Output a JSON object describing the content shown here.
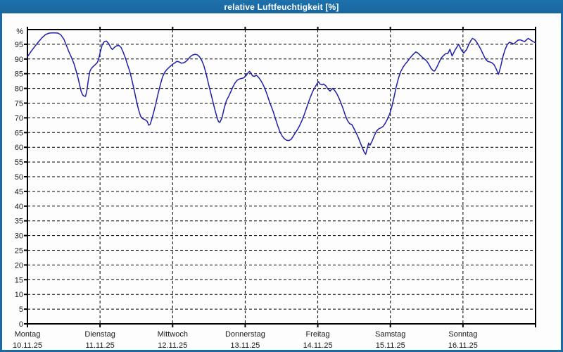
{
  "window": {
    "title": "relative Luftfeuchtigkeit [%]"
  },
  "colors": {
    "titlebar": "#1A6AA5",
    "title_text": "#FFFFFF",
    "background": "#FCFDFC",
    "curve": "#2020A8",
    "grid": "#000000",
    "axis": "#000000",
    "text": "#1A1A1A"
  },
  "chart_data": {
    "type": "line",
    "title": "relative Luftfeuchtigkeit [%]",
    "ylabel": "%",
    "xlabel": "",
    "ylim": [
      0,
      100
    ],
    "y_tick_step": 5,
    "y_tick_labels": [
      0,
      5,
      10,
      15,
      20,
      25,
      30,
      35,
      40,
      45,
      50,
      55,
      60,
      65,
      70,
      75,
      80,
      85,
      90,
      95
    ],
    "y_unit_label": "%",
    "grid": "dashed",
    "legend_position": "none",
    "x_days": [
      {
        "name": "Montag",
        "date": "10.11.25"
      },
      {
        "name": "Dienstag",
        "date": "11.11.25"
      },
      {
        "name": "Mittwoch",
        "date": "12.11.25"
      },
      {
        "name": "Donnerstag",
        "date": "13.11.25"
      },
      {
        "name": "Freitag",
        "date": "14.11.25"
      },
      {
        "name": "Samstag",
        "date": "15.11.25"
      },
      {
        "name": "Sonntag",
        "date": "16.11.25"
      }
    ],
    "series": [
      {
        "name": "relative Luftfeuchtigkeit",
        "unit": "%",
        "x_unit": "days_since_monday",
        "points": [
          [
            0.0,
            90.8
          ],
          [
            0.05,
            92.6
          ],
          [
            0.1,
            94.2
          ],
          [
            0.15,
            95.8
          ],
          [
            0.2,
            97.2
          ],
          [
            0.25,
            98.3
          ],
          [
            0.3,
            98.8
          ],
          [
            0.36,
            98.9
          ],
          [
            0.42,
            98.8
          ],
          [
            0.46,
            98.2
          ],
          [
            0.5,
            96.8
          ],
          [
            0.53,
            95.0
          ],
          [
            0.57,
            92.5
          ],
          [
            0.61,
            90.3
          ],
          [
            0.64,
            88.5
          ],
          [
            0.67,
            86.0
          ],
          [
            0.7,
            83.3
          ],
          [
            0.72,
            81.0
          ],
          [
            0.74,
            79.0
          ],
          [
            0.76,
            77.8
          ],
          [
            0.78,
            77.4
          ],
          [
            0.8,
            77.3
          ],
          [
            0.82,
            79.5
          ],
          [
            0.84,
            83.0
          ],
          [
            0.86,
            85.8
          ],
          [
            0.88,
            86.8
          ],
          [
            0.9,
            87.3
          ],
          [
            0.93,
            88.0
          ],
          [
            0.96,
            88.7
          ],
          [
            0.98,
            89.8
          ],
          [
            1.0,
            92.0
          ],
          [
            1.03,
            94.8
          ],
          [
            1.06,
            95.9
          ],
          [
            1.09,
            96.1
          ],
          [
            1.12,
            95.2
          ],
          [
            1.15,
            93.8
          ],
          [
            1.17,
            93.2
          ],
          [
            1.2,
            94.0
          ],
          [
            1.23,
            94.5
          ],
          [
            1.26,
            94.6
          ],
          [
            1.29,
            93.9
          ],
          [
            1.32,
            92.3
          ],
          [
            1.35,
            90.3
          ],
          [
            1.38,
            88.0
          ],
          [
            1.41,
            85.8
          ],
          [
            1.44,
            82.8
          ],
          [
            1.47,
            79.5
          ],
          [
            1.5,
            76.0
          ],
          [
            1.53,
            72.8
          ],
          [
            1.56,
            70.5
          ],
          [
            1.59,
            69.7
          ],
          [
            1.62,
            69.4
          ],
          [
            1.65,
            68.8
          ],
          [
            1.67,
            67.5
          ],
          [
            1.69,
            67.8
          ],
          [
            1.71,
            69.3
          ],
          [
            1.74,
            72.0
          ],
          [
            1.77,
            75.0
          ],
          [
            1.8,
            78.3
          ],
          [
            1.83,
            81.2
          ],
          [
            1.86,
            83.8
          ],
          [
            1.89,
            85.4
          ],
          [
            1.92,
            86.4
          ],
          [
            1.95,
            87.1
          ],
          [
            1.98,
            87.8
          ],
          [
            2.0,
            88.2
          ],
          [
            2.03,
            88.7
          ],
          [
            2.06,
            89.2
          ],
          [
            2.09,
            89.0
          ],
          [
            2.12,
            88.6
          ],
          [
            2.15,
            88.7
          ],
          [
            2.18,
            89.1
          ],
          [
            2.21,
            89.8
          ],
          [
            2.24,
            90.7
          ],
          [
            2.27,
            91.3
          ],
          [
            2.31,
            91.6
          ],
          [
            2.34,
            91.4
          ],
          [
            2.37,
            90.8
          ],
          [
            2.4,
            89.6
          ],
          [
            2.43,
            87.8
          ],
          [
            2.46,
            85.2
          ],
          [
            2.49,
            82.0
          ],
          [
            2.52,
            79.0
          ],
          [
            2.55,
            76.0
          ],
          [
            2.58,
            73.0
          ],
          [
            2.61,
            70.3
          ],
          [
            2.63,
            68.8
          ],
          [
            2.65,
            68.4
          ],
          [
            2.68,
            70.0
          ],
          [
            2.71,
            73.2
          ],
          [
            2.74,
            75.8
          ],
          [
            2.77,
            77.2
          ],
          [
            2.8,
            78.8
          ],
          [
            2.83,
            80.5
          ],
          [
            2.86,
            81.9
          ],
          [
            2.89,
            82.8
          ],
          [
            2.92,
            83.2
          ],
          [
            2.95,
            83.4
          ],
          [
            2.98,
            83.6
          ],
          [
            3.01,
            84.3
          ],
          [
            3.04,
            85.3
          ],
          [
            3.06,
            85.8
          ],
          [
            3.08,
            85.2
          ],
          [
            3.1,
            84.3
          ],
          [
            3.13,
            84.1
          ],
          [
            3.15,
            84.5
          ],
          [
            3.18,
            83.9
          ],
          [
            3.21,
            82.9
          ],
          [
            3.24,
            81.6
          ],
          [
            3.27,
            80.0
          ],
          [
            3.3,
            78.0
          ],
          [
            3.33,
            75.8
          ],
          [
            3.36,
            73.8
          ],
          [
            3.39,
            71.8
          ],
          [
            3.42,
            69.5
          ],
          [
            3.45,
            67.2
          ],
          [
            3.48,
            65.2
          ],
          [
            3.51,
            63.8
          ],
          [
            3.54,
            62.9
          ],
          [
            3.57,
            62.4
          ],
          [
            3.6,
            62.3
          ],
          [
            3.63,
            62.6
          ],
          [
            3.66,
            63.7
          ],
          [
            3.69,
            64.9
          ],
          [
            3.72,
            66.0
          ],
          [
            3.75,
            67.4
          ],
          [
            3.78,
            69.0
          ],
          [
            3.81,
            70.9
          ],
          [
            3.84,
            73.0
          ],
          [
            3.87,
            75.2
          ],
          [
            3.9,
            77.2
          ],
          [
            3.93,
            79.0
          ],
          [
            3.96,
            80.3
          ],
          [
            3.99,
            81.6
          ],
          [
            4.01,
            82.3
          ],
          [
            4.03,
            81.5
          ],
          [
            4.06,
            81.2
          ],
          [
            4.08,
            81.5
          ],
          [
            4.11,
            80.9
          ],
          [
            4.14,
            79.8
          ],
          [
            4.17,
            79.1
          ],
          [
            4.2,
            80.0
          ],
          [
            4.23,
            79.4
          ],
          [
            4.26,
            78.3
          ],
          [
            4.29,
            76.8
          ],
          [
            4.32,
            75.0
          ],
          [
            4.35,
            73.0
          ],
          [
            4.38,
            70.8
          ],
          [
            4.41,
            69.0
          ],
          [
            4.44,
            68.0
          ],
          [
            4.47,
            67.7
          ],
          [
            4.5,
            66.3
          ],
          [
            4.53,
            64.8
          ],
          [
            4.56,
            63.2
          ],
          [
            4.59,
            61.3
          ],
          [
            4.62,
            59.5
          ],
          [
            4.64,
            58.3
          ],
          [
            4.66,
            57.6
          ],
          [
            4.68,
            59.5
          ],
          [
            4.7,
            61.4
          ],
          [
            4.72,
            60.7
          ],
          [
            4.75,
            62.2
          ],
          [
            4.78,
            64.0
          ],
          [
            4.81,
            65.5
          ],
          [
            4.84,
            66.3
          ],
          [
            4.87,
            66.6
          ],
          [
            4.9,
            67.1
          ],
          [
            4.93,
            68.2
          ],
          [
            4.96,
            69.6
          ],
          [
            4.99,
            71.3
          ],
          [
            5.02,
            73.8
          ],
          [
            5.05,
            77.0
          ],
          [
            5.08,
            80.5
          ],
          [
            5.11,
            83.4
          ],
          [
            5.14,
            85.6
          ],
          [
            5.17,
            87.0
          ],
          [
            5.2,
            88.1
          ],
          [
            5.23,
            89.0
          ],
          [
            5.26,
            90.0
          ],
          [
            5.29,
            90.9
          ],
          [
            5.32,
            91.7
          ],
          [
            5.35,
            92.4
          ],
          [
            5.38,
            92.0
          ],
          [
            5.41,
            91.3
          ],
          [
            5.44,
            90.6
          ],
          [
            5.47,
            90.0
          ],
          [
            5.5,
            89.3
          ],
          [
            5.53,
            88.2
          ],
          [
            5.56,
            86.8
          ],
          [
            5.59,
            86.0
          ],
          [
            5.61,
            85.9
          ],
          [
            5.64,
            87.2
          ],
          [
            5.67,
            88.8
          ],
          [
            5.7,
            90.3
          ],
          [
            5.73,
            91.1
          ],
          [
            5.76,
            91.8
          ],
          [
            5.79,
            91.8
          ],
          [
            5.82,
            93.3
          ],
          [
            5.85,
            91.0
          ],
          [
            5.89,
            93.0
          ],
          [
            5.94,
            95.0
          ],
          [
            5.98,
            93.0
          ],
          [
            6.01,
            92.0
          ],
          [
            6.05,
            93.2
          ],
          [
            6.08,
            94.9
          ],
          [
            6.11,
            96.3
          ],
          [
            6.13,
            97.0
          ],
          [
            6.16,
            96.6
          ],
          [
            6.19,
            95.7
          ],
          [
            6.22,
            94.5
          ],
          [
            6.25,
            93.1
          ],
          [
            6.28,
            91.5
          ],
          [
            6.31,
            90.0
          ],
          [
            6.34,
            89.2
          ],
          [
            6.37,
            89.0
          ],
          [
            6.4,
            88.7
          ],
          [
            6.43,
            88.0
          ],
          [
            6.46,
            86.5
          ],
          [
            6.48,
            85.2
          ],
          [
            6.49,
            84.8
          ],
          [
            6.52,
            87.5
          ],
          [
            6.55,
            90.8
          ],
          [
            6.58,
            93.2
          ],
          [
            6.61,
            94.9
          ],
          [
            6.64,
            95.7
          ],
          [
            6.67,
            95.4
          ],
          [
            6.7,
            95.1
          ],
          [
            6.73,
            95.8
          ],
          [
            6.76,
            96.4
          ],
          [
            6.79,
            96.5
          ],
          [
            6.82,
            96.2
          ],
          [
            6.85,
            95.9
          ],
          [
            6.88,
            96.6
          ],
          [
            6.9,
            97.0
          ],
          [
            6.93,
            96.5
          ],
          [
            6.96,
            96.0
          ],
          [
            6.99,
            95.6
          ],
          [
            7.0,
            95.5
          ]
        ]
      }
    ]
  }
}
